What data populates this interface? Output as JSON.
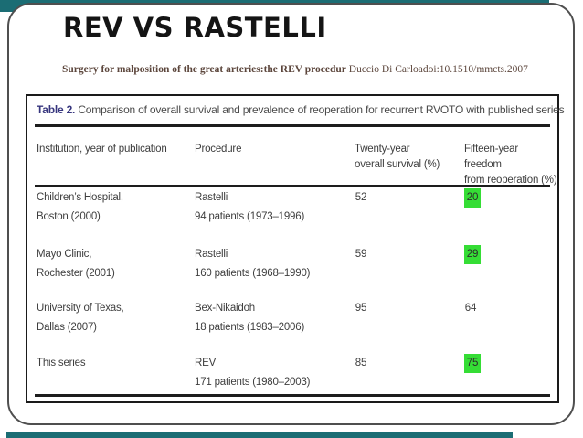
{
  "colors": {
    "teal_background": "#1b6d74",
    "highlight_green": "#35dd35",
    "caption_label_navy": "#37367e",
    "citation_maroon": "#5c463c"
  },
  "slide": {
    "title": "REV VS RASTELLI",
    "citation": {
      "bold_part": "Surgery for malposition of the great arteries:the REV procedur",
      "regular_part": " Duccio Di Carloadoi:10.1510/mmcts.2007"
    }
  },
  "table": {
    "caption": {
      "label": "Table 2.",
      "text": " Comparison of overall survival and prevalence of reoperation for recurrent RVOTO with published series"
    },
    "headers": {
      "col1": "Institution, year of publication",
      "col2": "Procedure",
      "col3_line1": "Twenty-year",
      "col3_line2": "overall survival (%)",
      "col4_line1": "Fifteen-year freedom",
      "col4_line2": "from reoperation (%)"
    },
    "rows": [
      {
        "institution_line1": "Children’s Hospital,",
        "institution_line2": "Boston (2000)",
        "procedure_name": "Rastelli",
        "procedure_detail": "94 patients (1973–1996)",
        "twenty_year_survival": "52",
        "fifteen_year_freedom": "20",
        "freedom_highlighted": true
      },
      {
        "institution_line1": "Mayo Clinic,",
        "institution_line2": "Rochester (2001)",
        "procedure_name": "Rastelli",
        "procedure_detail": "160 patients (1968–1990)",
        "twenty_year_survival": "59",
        "fifteen_year_freedom": "29",
        "freedom_highlighted": true
      },
      {
        "institution_line1": "University of Texas,",
        "institution_line2": "Dallas (2007)",
        "procedure_name": "Bex-Nikaidoh",
        "procedure_detail": "18 patients (1983–2006)",
        "twenty_year_survival": "95",
        "fifteen_year_freedom": "64",
        "freedom_highlighted": false
      },
      {
        "institution_line1": "This series",
        "institution_line2": "",
        "procedure_name": "REV",
        "procedure_detail": "171 patients (1980–2003)",
        "twenty_year_survival": "85",
        "fifteen_year_freedom": "75",
        "freedom_highlighted": true
      }
    ]
  }
}
